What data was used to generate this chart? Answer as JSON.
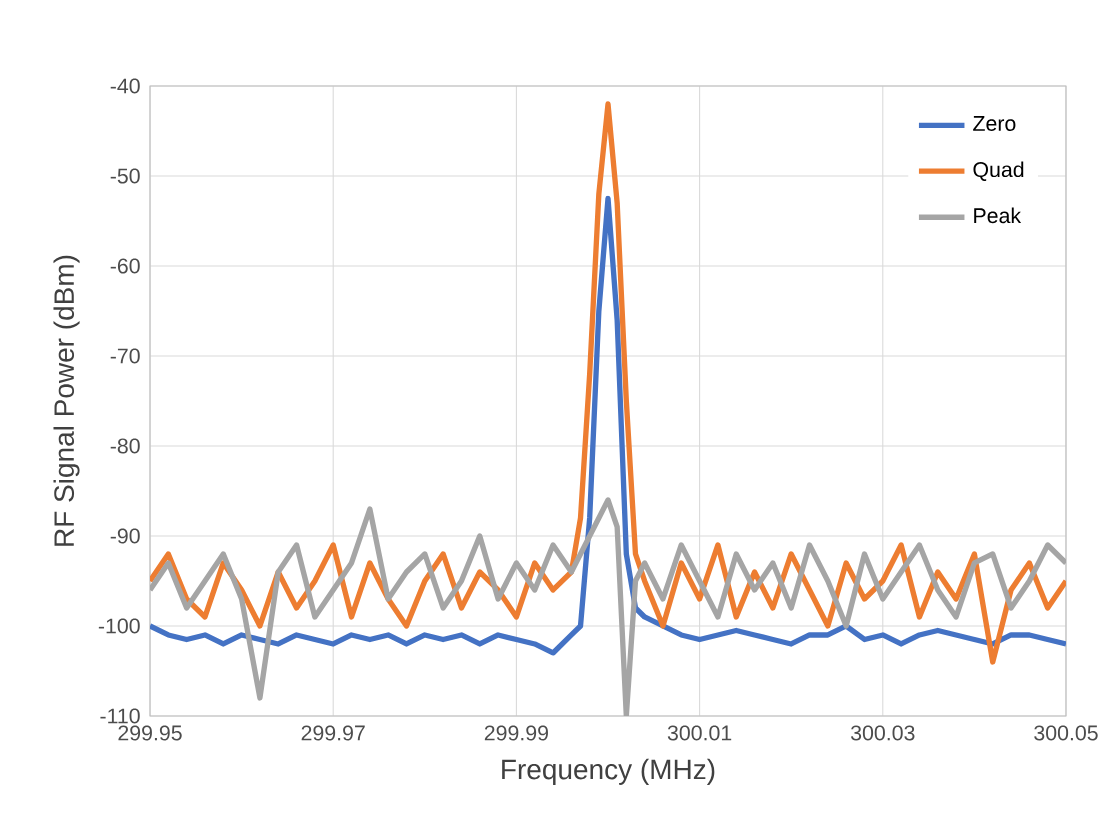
{
  "chart_data": {
    "type": "line",
    "xlabel": "Frequency (MHz)",
    "ylabel": "RF Signal Power (dBm)",
    "x": [
      299.95,
      299.952,
      299.954,
      299.956,
      299.958,
      299.96,
      299.962,
      299.964,
      299.966,
      299.968,
      299.97,
      299.972,
      299.974,
      299.976,
      299.978,
      299.98,
      299.982,
      299.984,
      299.986,
      299.988,
      299.99,
      299.992,
      299.994,
      299.996,
      299.997,
      299.998,
      299.999,
      300.0,
      300.001,
      300.002,
      300.003,
      300.004,
      300.006,
      300.008,
      300.01,
      300.012,
      300.014,
      300.016,
      300.018,
      300.02,
      300.022,
      300.024,
      300.026,
      300.028,
      300.03,
      300.032,
      300.034,
      300.036,
      300.038,
      300.04,
      300.042,
      300.044,
      300.046,
      300.048,
      300.05
    ],
    "series": [
      {
        "name": "Zero",
        "color": "#4472c4",
        "values": [
          -100,
          -101,
          -101.5,
          -101,
          -102,
          -101,
          -101.5,
          -102,
          -101,
          -101.5,
          -102,
          -101,
          -101.5,
          -101,
          -102,
          -101,
          -101.5,
          -101,
          -102,
          -101,
          -101.5,
          -102,
          -103,
          -101,
          -100,
          -88,
          -65,
          -52.5,
          -66,
          -92,
          -98,
          -99,
          -100,
          -101,
          -101.5,
          -101,
          -100.5,
          -101,
          -101.5,
          -102,
          -101,
          -101,
          -100,
          -101.5,
          -101,
          -102,
          -101,
          -100.5,
          -101,
          -101.5,
          -102,
          -101,
          -101,
          -101.5,
          -102
        ]
      },
      {
        "name": "Quad",
        "color": "#ed7d31",
        "values": [
          -95,
          -92,
          -97,
          -99,
          -93,
          -96,
          -100,
          -94,
          -98,
          -95,
          -91,
          -99,
          -93,
          -97,
          -100,
          -95,
          -92,
          -98,
          -94,
          -96,
          -99,
          -93,
          -96,
          -94,
          -88,
          -72,
          -52,
          -42,
          -53,
          -75,
          -92,
          -95,
          -100,
          -93,
          -97,
          -91,
          -99,
          -94,
          -98,
          -92,
          -96,
          -100,
          -93,
          -97,
          -95,
          -91,
          -99,
          -94,
          -97,
          -92,
          -104,
          -96,
          -93,
          -98,
          -95
        ]
      },
      {
        "name": "Peak",
        "color": "#a5a5a5",
        "values": [
          -96,
          -93,
          -98,
          -95,
          -92,
          -97,
          -108,
          -94,
          -91,
          -99,
          -96,
          -93,
          -87,
          -97,
          -94,
          -92,
          -98,
          -95,
          -90,
          -97,
          -93,
          -96,
          -91,
          -94,
          -92,
          -90,
          -88,
          -86,
          -89,
          -110,
          -95,
          -93,
          -97,
          -91,
          -95,
          -99,
          -92,
          -96,
          -93,
          -98,
          -91,
          -95,
          -100,
          -92,
          -97,
          -94,
          -91,
          -96,
          -99,
          -93,
          -92,
          -98,
          -95,
          -91,
          -93
        ]
      }
    ],
    "xlim": [
      299.95,
      300.05
    ],
    "xticks": [
      299.95,
      299.97,
      299.99,
      300.01,
      300.03,
      300.05
    ],
    "ylim": [
      -110,
      -40
    ],
    "yticks": [
      -110,
      -100,
      -90,
      -80,
      -70,
      -60,
      -50,
      -40
    ],
    "grid": true,
    "legend": "top right",
    "marker": "none",
    "line_style": "solid"
  }
}
